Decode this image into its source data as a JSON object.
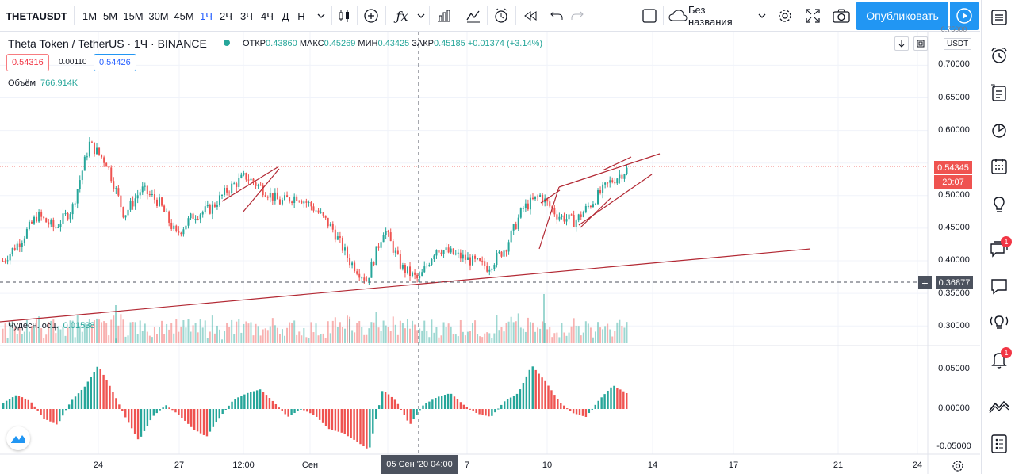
{
  "toolbar": {
    "symbol": "THETAUSDT",
    "intervals": [
      "1М",
      "5М",
      "15М",
      "30М",
      "45М",
      "1Ч",
      "2Ч",
      "3Ч",
      "4Ч",
      "Д",
      "Н"
    ],
    "active_interval": "1Ч",
    "indicators_icon": "fx-icon",
    "layout_name": "Без названия",
    "publish_label": "Опубликовать"
  },
  "legend": {
    "title": "Theta Token / TetherUS · 1Ч · BINANCE",
    "open_label": "ОТКР",
    "open": "0.43860",
    "high_label": "МАКС",
    "high": "0.45269",
    "low_label": "МИН",
    "low": "0.43425",
    "close_label": "ЗАКР",
    "close": "0.45185",
    "change": "+0.01374 (+3.14%)",
    "bid": "0.54316",
    "spread": "0.00110",
    "ask": "0.54426",
    "volume_label": "Объём",
    "volume_value": "766.914K",
    "osc_label": "Чудесн. осц.",
    "osc_value": "0.01538"
  },
  "price_axis": {
    "currency": "USDT",
    "top_clipped": "0.75000",
    "ticks": [
      "0.70000",
      "0.65000",
      "0.60000",
      "0.50000",
      "0.45000",
      "0.40000",
      "0.35000",
      "0.30000"
    ],
    "osc_ticks": [
      "0.05000",
      "0.00000",
      "-0.05000"
    ],
    "last_price": "0.54345",
    "countdown": "20:07",
    "crosshair_price": "0.36877"
  },
  "time_axis": {
    "labels": [
      "24",
      "27",
      "12:00",
      "Сен",
      "7",
      "10",
      "14",
      "17",
      "21",
      "24"
    ],
    "crosshair_time": "05 Сен '20   04:00"
  },
  "right_sidebar": {
    "items": [
      "watchlist-icon",
      "alarm-clock-icon",
      "data-window-icon",
      "hotlist-icon",
      "calendar-icon",
      "ideas-icon",
      "chat-icon",
      "private-chat-icon",
      "streams-icon",
      "notifications-icon",
      "order-panel-icon",
      "dom-icon"
    ],
    "chat_badge": "1",
    "notifications_badge": "1"
  },
  "colors": {
    "up": "#26a69a",
    "down": "#ef5350",
    "trendline": "#b22833",
    "accent": "#2196f3",
    "osc_up": "#26a69a",
    "osc_down": "#ef5350"
  },
  "chart_data": {
    "type": "candlestick",
    "symbol": "THETAUSDT",
    "interval": "1H",
    "approx_close_path": [
      0.4,
      0.43,
      0.47,
      0.45,
      0.48,
      0.58,
      0.55,
      0.47,
      0.51,
      0.49,
      0.44,
      0.47,
      0.48,
      0.51,
      0.53,
      0.51,
      0.49,
      0.5,
      0.48,
      0.45,
      0.4,
      0.37,
      0.45,
      0.39,
      0.37,
      0.42,
      0.41,
      0.4,
      0.39,
      0.42,
      0.48,
      0.5,
      0.47,
      0.46,
      0.49,
      0.52,
      0.54
    ],
    "ylim": [
      0.28,
      0.75
    ],
    "osc_ylim": [
      -0.06,
      0.07
    ]
  }
}
